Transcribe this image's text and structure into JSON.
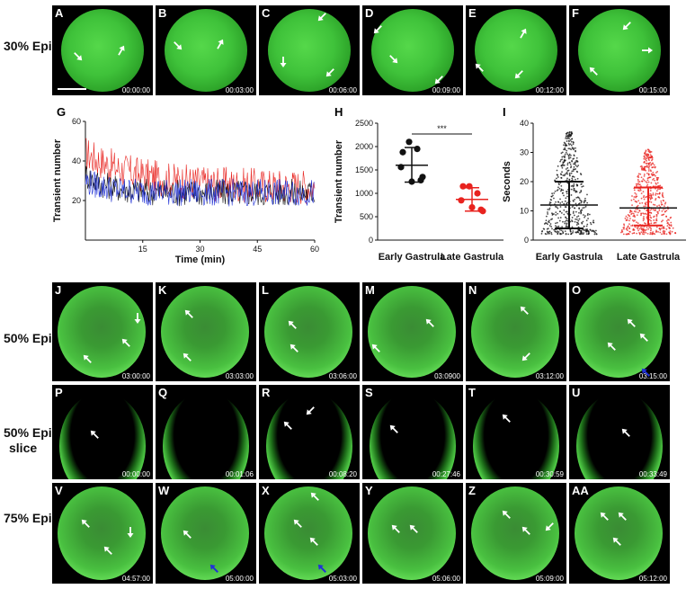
{
  "row_labels": {
    "r1": "30% Epi",
    "r2": "50% Epi",
    "r3a": "50% Epi",
    "r3b": "slice",
    "r4": "75% Epi"
  },
  "row1": [
    {
      "label": "A",
      "time": "00:00:00"
    },
    {
      "label": "B",
      "time": "00:03:00"
    },
    {
      "label": "C",
      "time": "00:06:00"
    },
    {
      "label": "D",
      "time": "00:09:00"
    },
    {
      "label": "E",
      "time": "00:12:00"
    },
    {
      "label": "F",
      "time": "00:15:00"
    }
  ],
  "row2": [
    {
      "label": "J",
      "time": "03:00:00"
    },
    {
      "label": "K",
      "time": "03:03:00"
    },
    {
      "label": "L",
      "time": "03:06:00"
    },
    {
      "label": "M",
      "time": "03:0900"
    },
    {
      "label": "N",
      "time": "03:12:00"
    },
    {
      "label": "O",
      "time": "03:15:00"
    }
  ],
  "row3": [
    {
      "label": "P",
      "time": "00:00:00"
    },
    {
      "label": "Q",
      "time": "00:01:06"
    },
    {
      "label": "R",
      "time": "00:08:20"
    },
    {
      "label": "S",
      "time": "00:27:46"
    },
    {
      "label": "T",
      "time": "00:30:59"
    },
    {
      "label": "U",
      "time": "00:33:49"
    }
  ],
  "row4": [
    {
      "label": "V",
      "time": "04:57:00"
    },
    {
      "label": "W",
      "time": "05:00:00"
    },
    {
      "label": "X",
      "time": "05:03:00"
    },
    {
      "label": "Y",
      "time": "05:06:00"
    },
    {
      "label": "Z",
      "time": "05:09:00"
    },
    {
      "label": "AA",
      "time": "05:12:00"
    }
  ],
  "colors": {
    "red": "#e8231f",
    "blue": "#2233d6",
    "black": "#111111",
    "green": "#3fc23a"
  },
  "chart_data": [
    {
      "panel": "G",
      "type": "line",
      "xlabel": "Time (min)",
      "ylabel": "Transient number",
      "xlim": [
        0,
        60
      ],
      "ylim": [
        0,
        60
      ],
      "xticks": [
        15,
        30,
        45,
        60
      ],
      "yticks": [
        20,
        40,
        60
      ],
      "series": [
        {
          "color": "#e8231f",
          "start": 44,
          "end": 27
        },
        {
          "color": "#111111",
          "start": 33,
          "end": 24
        },
        {
          "color": "#2233d6",
          "start": 30,
          "end": 24
        }
      ]
    },
    {
      "panel": "H",
      "type": "scatter",
      "ylabel": "Transient number",
      "ylim": [
        0,
        2500
      ],
      "yticks": [
        0,
        500,
        1000,
        1500,
        2000,
        2500
      ],
      "categories": [
        "Early Gastrula",
        "Late Gastrula"
      ],
      "significance": "***",
      "series": [
        {
          "category": "Early Gastrula",
          "color": "#111111",
          "values": [
            2100,
            1880,
            1950,
            1560,
            1250,
            1280,
            1350
          ],
          "mean": 1600,
          "sd_low": 1240,
          "sd_high": 1980
        },
        {
          "category": "Late Gastrula",
          "color": "#e8231f",
          "values": [
            1150,
            1150,
            1000,
            850,
            700,
            650,
            620
          ],
          "mean": 870,
          "sd_low": 620,
          "sd_high": 1120
        }
      ]
    },
    {
      "panel": "I",
      "type": "scatter",
      "ylabel": "Seconds",
      "ylim": [
        0,
        40
      ],
      "yticks": [
        0,
        10,
        20,
        30,
        40
      ],
      "categories": [
        "Early Gastrula",
        "Late Gastrula"
      ],
      "series": [
        {
          "category": "Early Gastrula",
          "color": "#111111",
          "mean": 12,
          "sd_low": 4,
          "sd_high": 20,
          "max": 37
        },
        {
          "category": "Late Gastrula",
          "color": "#e8231f",
          "mean": 11,
          "sd_low": 5,
          "sd_high": 18,
          "max": 31
        }
      ]
    }
  ]
}
